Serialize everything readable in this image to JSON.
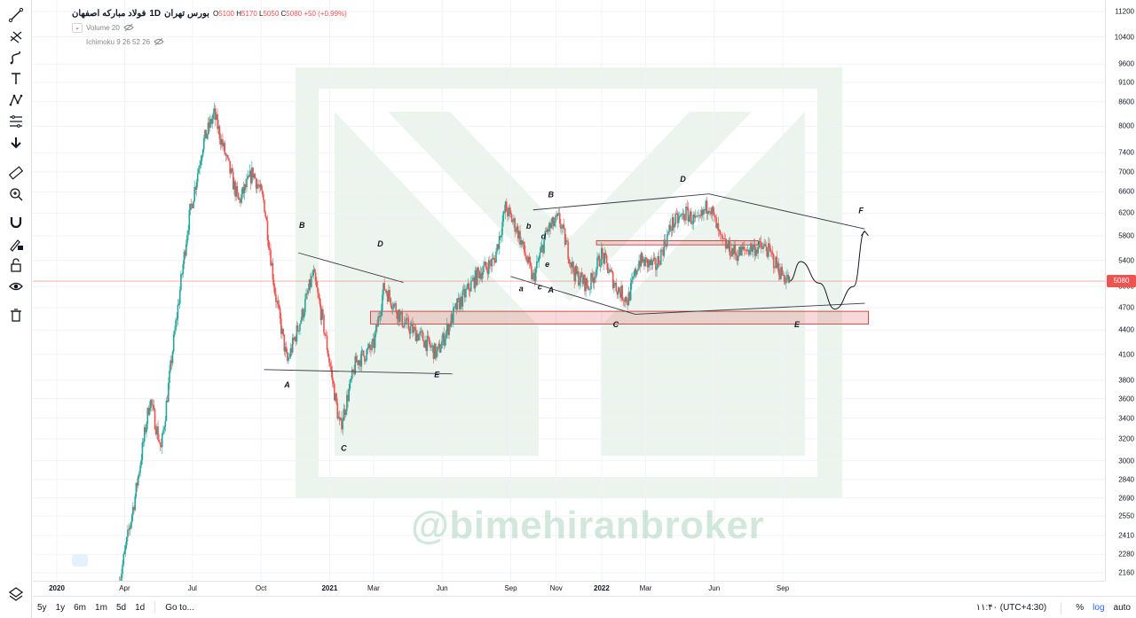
{
  "header": {
    "symbol": "فولاد مبارکه اصفهان",
    "interval": "1D",
    "exchange": "بورس تهران",
    "open": "5100",
    "high": "5170",
    "low": "5050",
    "close": "5080",
    "change": "+50 (+0.99%)",
    "volume_study": "Volume 20",
    "ichimoku_study": "Ichimoku 9 26 52 26"
  },
  "watermark": "@bimehiranbroker",
  "toolbar": {
    "icons": [
      "trend-line-icon",
      "pitchfork-icon",
      "brush-icon",
      "text-icon",
      "pattern-icon",
      "fib-icon",
      "arrow-down-icon",
      "ruler-icon",
      "zoom-in-icon",
      "magnet-icon",
      "lock-draw-icon",
      "unlock-icon",
      "eye-icon",
      "trash-icon"
    ],
    "bottom_icon": "layers-icon"
  },
  "bottom_bar": {
    "ranges": [
      "5y",
      "1y",
      "6m",
      "1m",
      "5d",
      "1d"
    ],
    "goto": "Go to...",
    "time": "۱۱:۴۰ (UTC+4:30)",
    "percent": "%",
    "log": "log",
    "auto": "auto"
  },
  "chart_data": {
    "type": "candlestick",
    "symbol": "فولاد مبارکه اصفهان",
    "interval": "1D",
    "scale": "log",
    "last_price": 5080,
    "y_ticks": [
      11200,
      10400,
      9600,
      9100,
      8600,
      8000,
      7400,
      7000,
      6600,
      6200,
      5800,
      5400,
      5000,
      4700,
      4400,
      4100,
      3800,
      3600,
      3400,
      3200,
      3000,
      2840,
      2690,
      2550,
      2410,
      2280,
      2160
    ],
    "x_ticks": [
      {
        "label": "2020",
        "date": "2020-01-01",
        "year": true
      },
      {
        "label": "Apr",
        "date": "2020-04-01"
      },
      {
        "label": "Jul",
        "date": "2020-07-01"
      },
      {
        "label": "Oct",
        "date": "2020-10-01"
      },
      {
        "label": "2021",
        "date": "2021-01-01",
        "year": true
      },
      {
        "label": "Mar",
        "date": "2021-03-01"
      },
      {
        "label": "Jun",
        "date": "2021-06-01"
      },
      {
        "label": "Sep",
        "date": "2021-09-01"
      },
      {
        "label": "Nov",
        "date": "2021-11-01"
      },
      {
        "label": "2022",
        "date": "2022-01-01",
        "year": true
      },
      {
        "label": "Mar",
        "date": "2022-03-01"
      },
      {
        "label": "Jun",
        "date": "2022-06-01"
      },
      {
        "label": "Sep",
        "date": "2022-09-01"
      }
    ],
    "price_path": [
      [
        "2020-03-25",
        2100
      ],
      [
        "2020-04-15",
        2700
      ],
      [
        "2020-05-05",
        3600
      ],
      [
        "2020-05-20",
        3100
      ],
      [
        "2020-06-05",
        4200
      ],
      [
        "2020-06-25",
        6000
      ],
      [
        "2020-07-15",
        7600
      ],
      [
        "2020-07-30",
        8300
      ],
      [
        "2020-08-15",
        7300
      ],
      [
        "2020-09-01",
        6400
      ],
      [
        "2020-09-20",
        7000
      ],
      [
        "2020-10-05",
        6400
      ],
      [
        "2020-10-20",
        4900
      ],
      [
        "2020-11-05",
        4000
      ],
      [
        "2020-11-25",
        4600
      ],
      [
        "2020-12-10",
        5200
      ],
      [
        "2020-12-25",
        4400
      ],
      [
        "2021-01-15",
        3300
      ],
      [
        "2021-02-05",
        4000
      ],
      [
        "2021-03-01",
        4200
      ],
      [
        "2021-03-15",
        5000
      ],
      [
        "2021-04-10",
        4500
      ],
      [
        "2021-05-05",
        4300
      ],
      [
        "2021-05-25",
        4100
      ],
      [
        "2021-06-20",
        4700
      ],
      [
        "2021-07-20",
        5200
      ],
      [
        "2021-08-10",
        5400
      ],
      [
        "2021-08-25",
        6300
      ],
      [
        "2021-09-10",
        5900
      ],
      [
        "2021-10-01",
        5100
      ],
      [
        "2021-10-20",
        5900
      ],
      [
        "2021-11-05",
        6100
      ],
      [
        "2021-11-25",
        5200
      ],
      [
        "2021-12-15",
        5000
      ],
      [
        "2022-01-01",
        5500
      ],
      [
        "2022-01-20",
        5000
      ],
      [
        "2022-02-05",
        4800
      ],
      [
        "2022-02-20",
        5400
      ],
      [
        "2022-03-15",
        5300
      ],
      [
        "2022-04-05",
        6000
      ],
      [
        "2022-04-25",
        6200
      ],
      [
        "2022-05-10",
        6000
      ],
      [
        "2022-05-25",
        6400
      ],
      [
        "2022-06-10",
        5700
      ],
      [
        "2022-07-01",
        5500
      ],
      [
        "2022-07-20",
        5600
      ],
      [
        "2022-08-10",
        5600
      ],
      [
        "2022-08-30",
        5200
      ],
      [
        "2022-09-10",
        5080
      ]
    ],
    "annotations": {
      "labels": [
        {
          "text": "A",
          "date": "2020-11-05",
          "price": 3720
        },
        {
          "text": "B",
          "date": "2020-11-25",
          "price": 5940
        },
        {
          "text": "C",
          "date": "2021-01-20",
          "price": 3090
        },
        {
          "text": "D",
          "date": "2021-03-10",
          "price": 5620
        },
        {
          "text": "E",
          "date": "2021-05-25",
          "price": 3830
        },
        {
          "text": "B",
          "date": "2021-10-25",
          "price": 6500
        },
        {
          "text": "D",
          "date": "2022-04-20",
          "price": 6800
        },
        {
          "text": "C",
          "date": "2022-01-20",
          "price": 4440
        },
        {
          "text": "E",
          "date": "2022-09-20",
          "price": 4440
        },
        {
          "text": "F",
          "date": "2022-12-15",
          "price": 6200
        },
        {
          "text": "a",
          "date": "2021-09-15",
          "price": 4930
        },
        {
          "text": "b",
          "date": "2021-09-25",
          "price": 5920
        },
        {
          "text": "c",
          "date": "2021-10-10",
          "price": 4960
        },
        {
          "text": "d",
          "date": "2021-10-15",
          "price": 5750
        },
        {
          "text": "e",
          "date": "2021-10-20",
          "price": 5300
        },
        {
          "text": "A",
          "date": "2021-10-25",
          "price": 4910
        }
      ],
      "trendlines": [
        {
          "from": [
            "2020-10-05",
            3920
          ],
          "to": [
            "2021-06-15",
            3870
          ]
        },
        {
          "from": [
            "2020-11-20",
            5520
          ],
          "to": [
            "2021-04-10",
            5060
          ]
        },
        {
          "from": [
            "2021-10-01",
            6260
          ],
          "to": [
            "2022-05-25",
            6560
          ]
        },
        {
          "from": [
            "2022-05-25",
            6560
          ],
          "to": [
            "2022-12-20",
            5920
          ]
        },
        {
          "from": [
            "2021-09-01",
            5150
          ],
          "to": [
            "2022-02-15",
            4610
          ]
        },
        {
          "from": [
            "2022-02-15",
            4610
          ],
          "to": [
            "2022-12-20",
            4760
          ]
        }
      ],
      "zones": [
        {
          "from": "2021-02-25",
          "to": "2022-12-25",
          "low": 4480,
          "high": 4650
        },
        {
          "from": "2021-12-25",
          "to": "2022-07-30",
          "low": 5650,
          "high": 5720
        }
      ],
      "projection": [
        [
          "2022-09-10",
          5080
        ],
        [
          "2022-09-25",
          5380
        ],
        [
          "2022-10-20",
          5050
        ],
        [
          "2022-11-10",
          4680
        ],
        [
          "2022-12-05",
          5000
        ],
        [
          "2022-12-20",
          5880
        ]
      ]
    }
  }
}
